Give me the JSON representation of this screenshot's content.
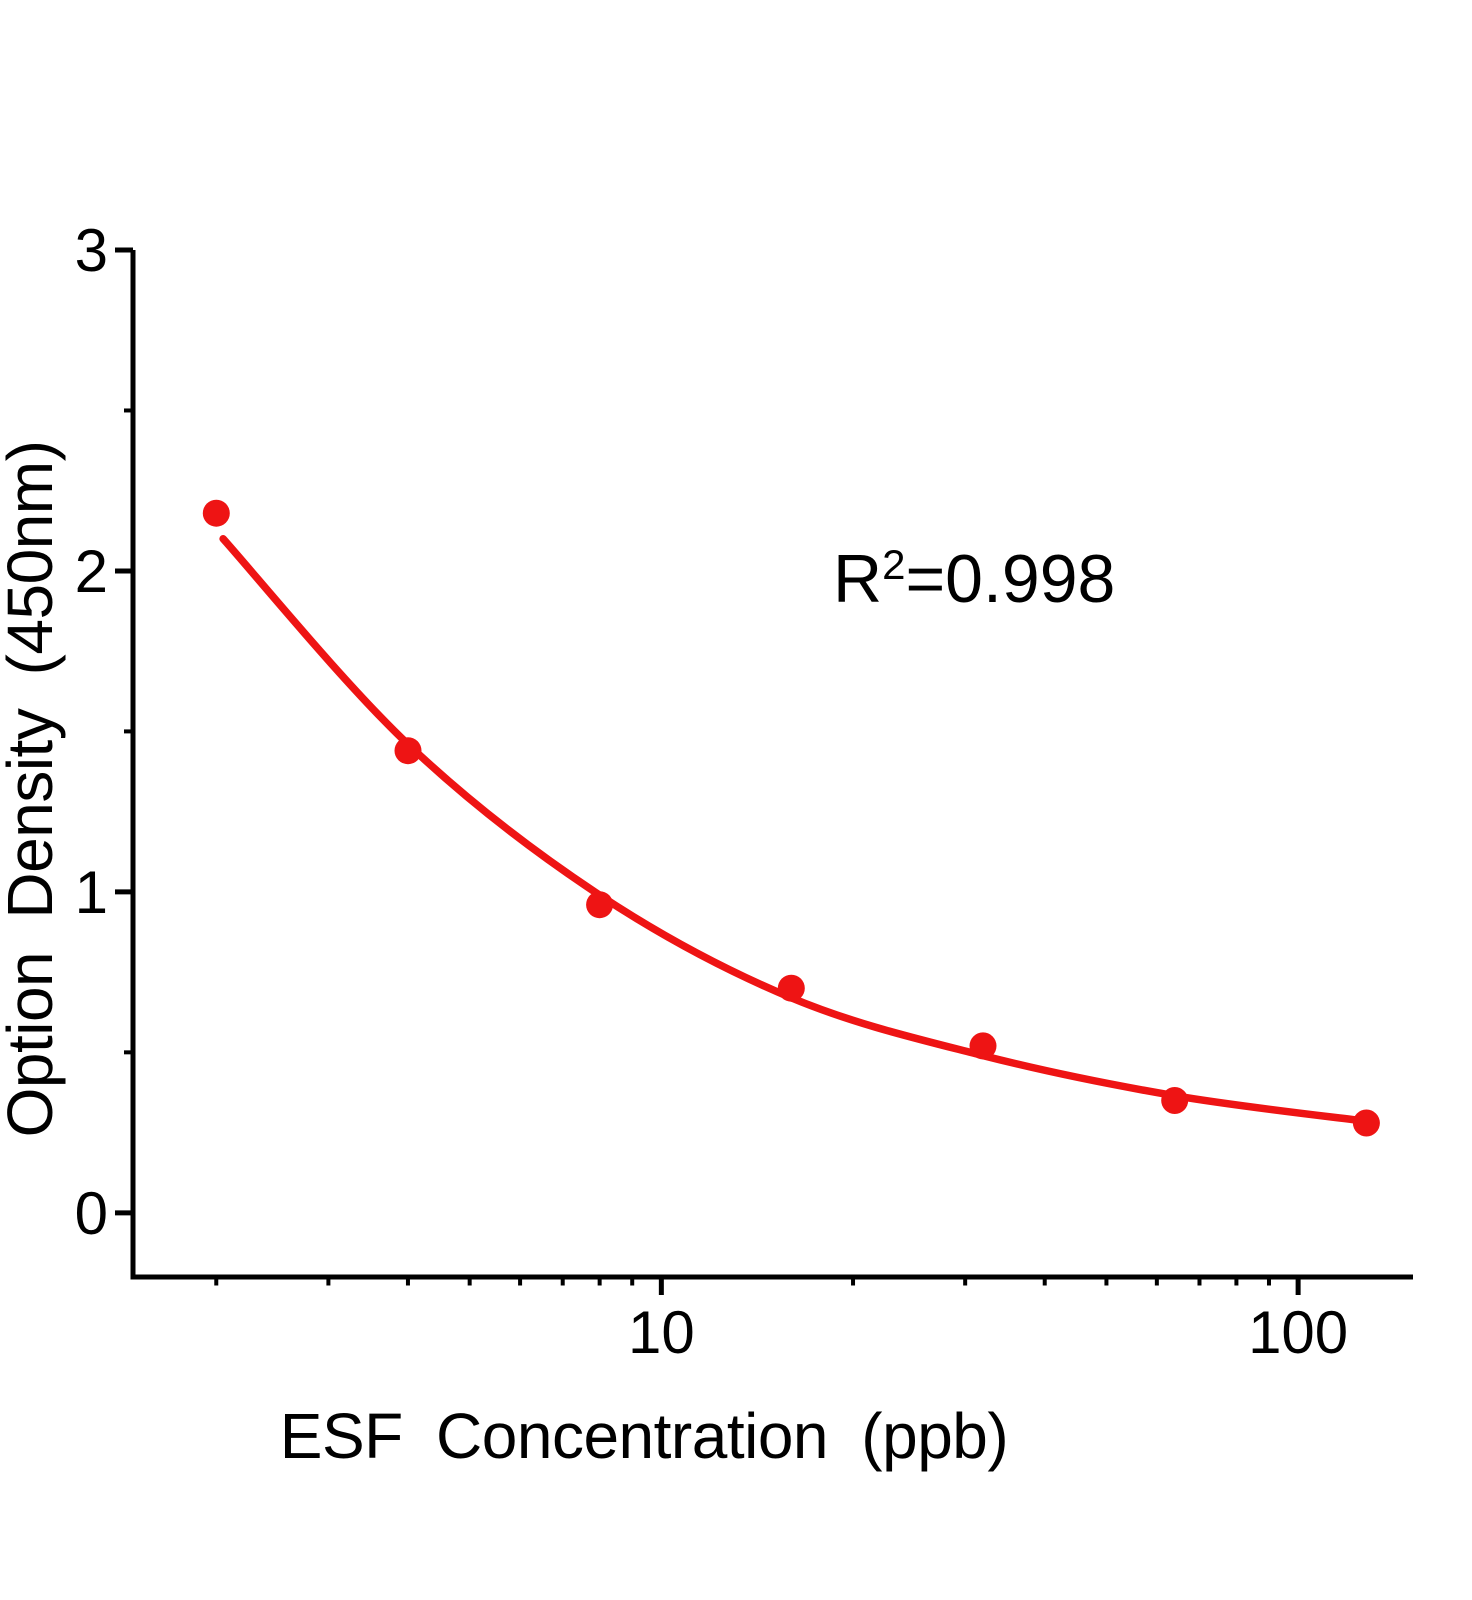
{
  "chart_data": {
    "type": "scatter",
    "title": "",
    "xlabel": "ESF Concentration (ppb)",
    "ylabel": "Option Density (450nm)",
    "annotation": "R2=0.998",
    "annotation_parts": {
      "base": "R",
      "sup": "2",
      "rest": "=0.998"
    },
    "x_scale": "log",
    "xlim": [
      1.48,
      151.5
    ],
    "ylim": [
      -0.2,
      3.0
    ],
    "grid": false,
    "legend": "none",
    "axis_color": "#000000",
    "point_color": "#ee1414",
    "line_color": "#ee1414",
    "series": [
      {
        "name": "standard-points",
        "type": "scatter",
        "color": "#ee1414",
        "x": [
          2,
          4,
          8,
          16,
          32,
          64,
          128
        ],
        "y": [
          2.18,
          1.44,
          0.96,
          0.7,
          0.52,
          0.35,
          0.28
        ]
      },
      {
        "name": "4pl-fit-curve",
        "type": "line",
        "color": "#ee1414",
        "points": [
          [
            2.05,
            2.1
          ],
          [
            4,
            1.46
          ],
          [
            8,
            0.99
          ],
          [
            16,
            0.67
          ],
          [
            32,
            0.49
          ],
          [
            64,
            0.365
          ],
          [
            128,
            0.285
          ]
        ]
      }
    ],
    "x_major_ticks": [
      {
        "value": 10,
        "label": "10"
      },
      {
        "value": 100,
        "label": "100"
      }
    ],
    "x_minor_ticks": [
      2,
      3,
      4,
      5,
      6,
      7,
      8,
      9,
      20,
      30,
      40,
      50,
      60,
      70,
      80,
      90
    ],
    "y_major_ticks": [
      {
        "value": 0,
        "label": "0"
      },
      {
        "value": 1,
        "label": "1"
      },
      {
        "value": 2,
        "label": "2"
      },
      {
        "value": 3,
        "label": "3"
      }
    ],
    "y_minor_ticks": [
      0.5,
      1.5,
      2.5
    ]
  }
}
